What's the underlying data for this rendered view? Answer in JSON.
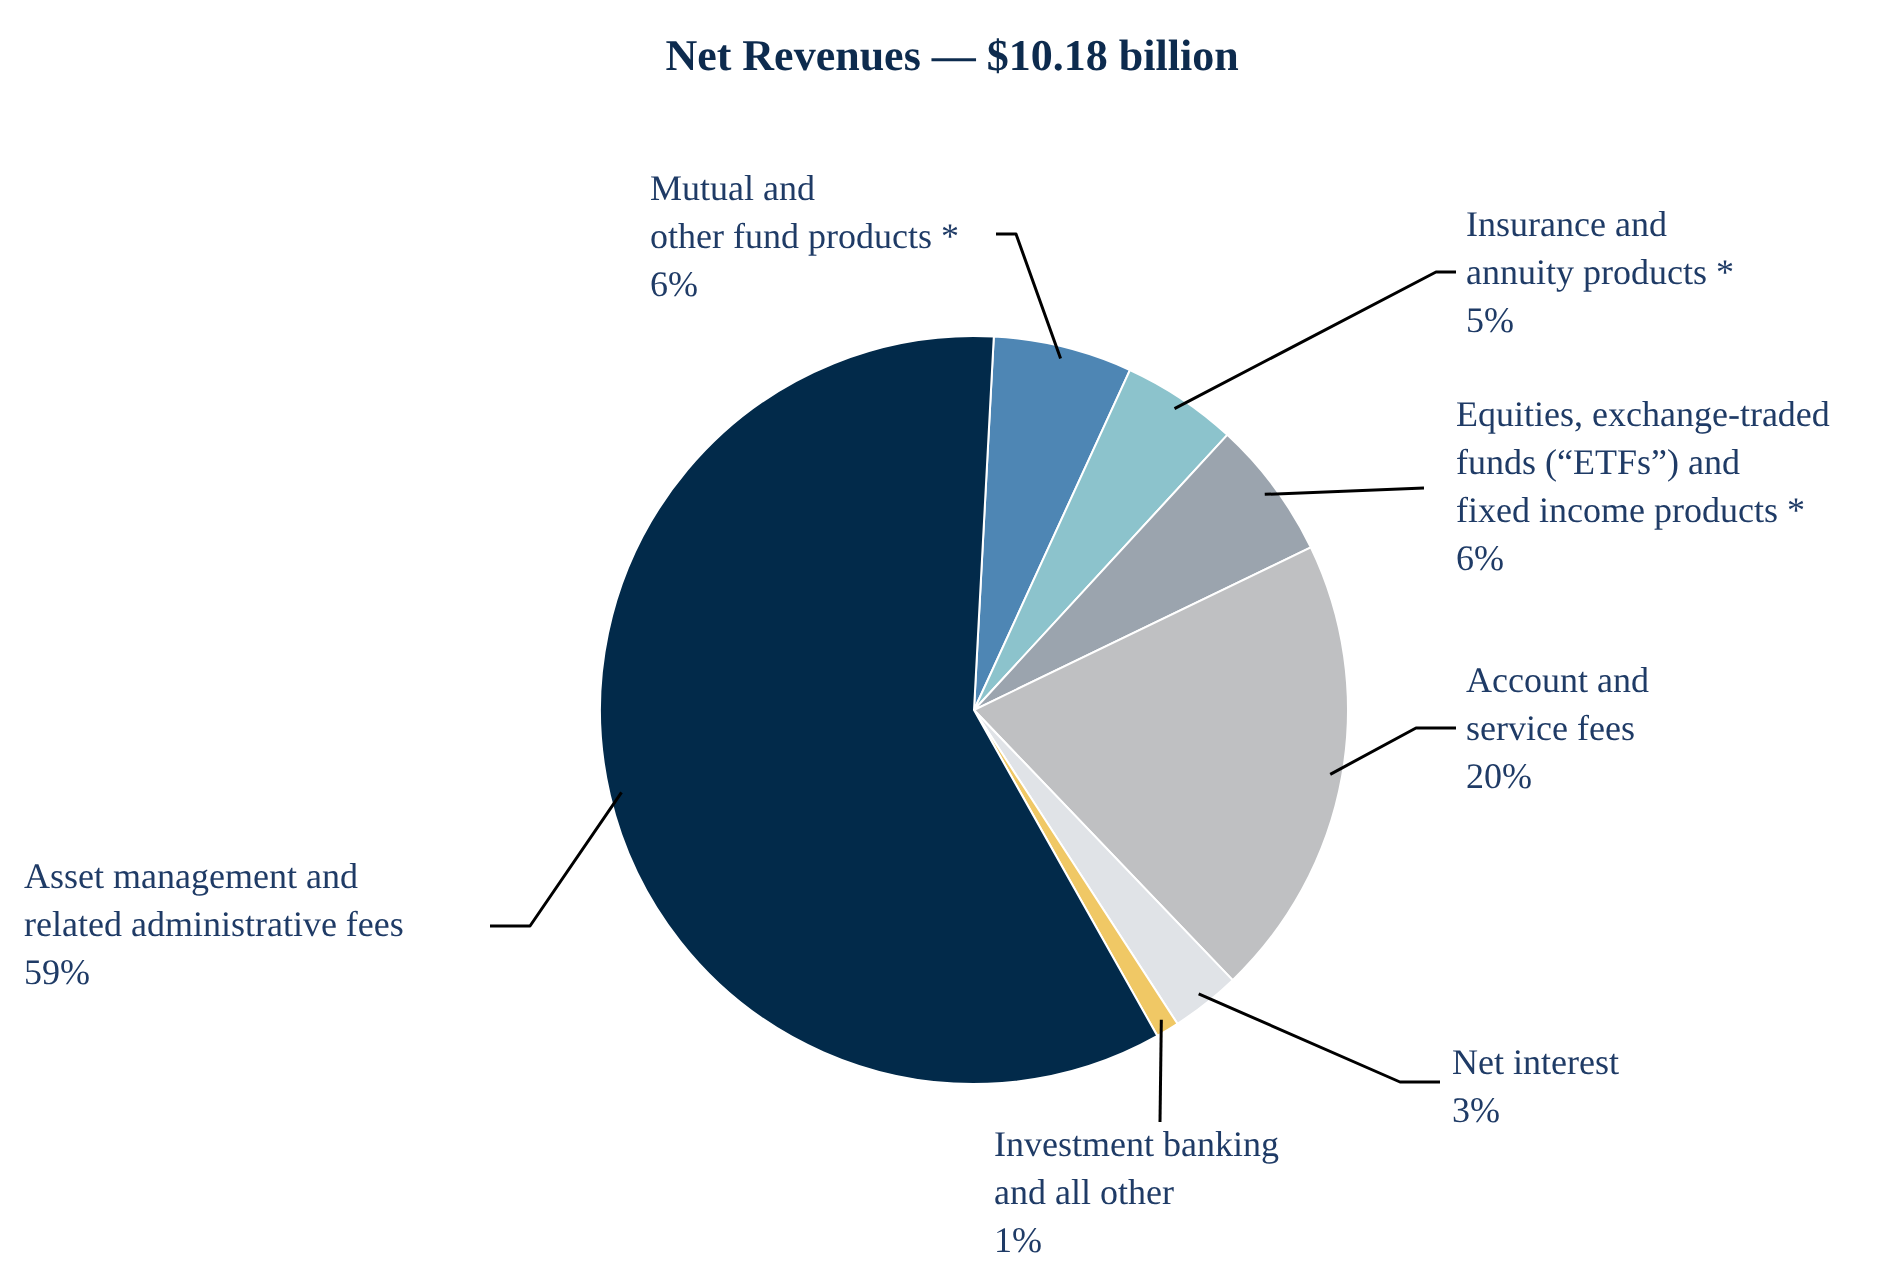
{
  "chart_data": {
    "type": "pie",
    "title": "Net Revenues — $10.18 billion",
    "categories": [
      "Mutual and\nother fund products *",
      "Insurance and\nannuity products *",
      "Equities, exchange-traded\nfunds (“ETFs”) and\nfixed income products *",
      "Account and\nservice fees",
      "Net interest",
      "Investment banking\nand all other",
      "Asset management and\nrelated administrative fees"
    ],
    "values": [
      6,
      5,
      6,
      20,
      3,
      1,
      59
    ],
    "value_labels": [
      "6%",
      "5%",
      "6%",
      "20%",
      "3%",
      "1%",
      "59%"
    ],
    "colors": [
      "#4e86b4",
      "#8cc3cc",
      "#9ba4ae",
      "#bfc0c2",
      "#e0e3e7",
      "#f0c865",
      "#022a4a"
    ]
  }
}
